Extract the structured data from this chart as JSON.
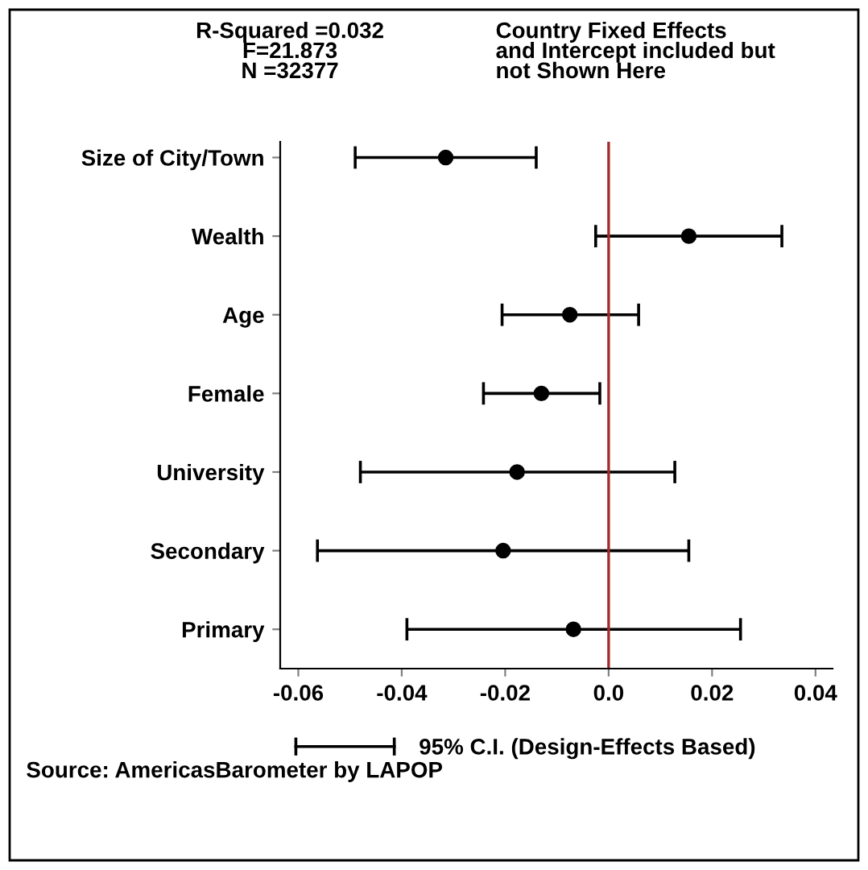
{
  "chart_data": {
    "type": "scatter",
    "orientation": "horizontal",
    "categories": [
      "Size of City/Town",
      "Wealth",
      "Age",
      "Female",
      "University",
      "Secondary",
      "Primary"
    ],
    "series": [
      {
        "name": "95% C.I. (Design-Effects Based)",
        "color": "#000000",
        "values": [
          -0.0315,
          0.0155,
          -0.0075,
          -0.013,
          -0.0177,
          -0.0204,
          -0.0068
        ],
        "errors": [
          [
            -0.049,
            -0.014
          ],
          [
            -0.0025,
            0.0335
          ],
          [
            -0.0206,
            0.0058
          ],
          [
            -0.0242,
            -0.0017
          ],
          [
            -0.048,
            0.0128
          ],
          [
            -0.0563,
            0.0155
          ],
          [
            -0.039,
            0.0255
          ]
        ]
      }
    ],
    "xlim": [
      -0.0635,
      0.0433
    ],
    "xticks": [
      {
        "value": -0.06,
        "label": "-0.06"
      },
      {
        "value": -0.04,
        "label": "-0.04"
      },
      {
        "value": -0.02,
        "label": "-0.02"
      },
      {
        "value": 0,
        "label": "0.0"
      },
      {
        "value": 0.02,
        "label": "0.02"
      },
      {
        "value": 0.04,
        "label": "0.04"
      }
    ],
    "ref_lines": [
      {
        "axis": "x",
        "value": 0,
        "color": "#a52a2a"
      }
    ],
    "marker": "circle",
    "grid": false,
    "legend": "bottom",
    "annotations": [
      "R-Squared =0.032\nF=21.873\nN =32377",
      "Country Fixed Effects\nand Intercept included but\nnot Shown Here",
      "Source: AmericasBarometer by LAPOP"
    ]
  }
}
